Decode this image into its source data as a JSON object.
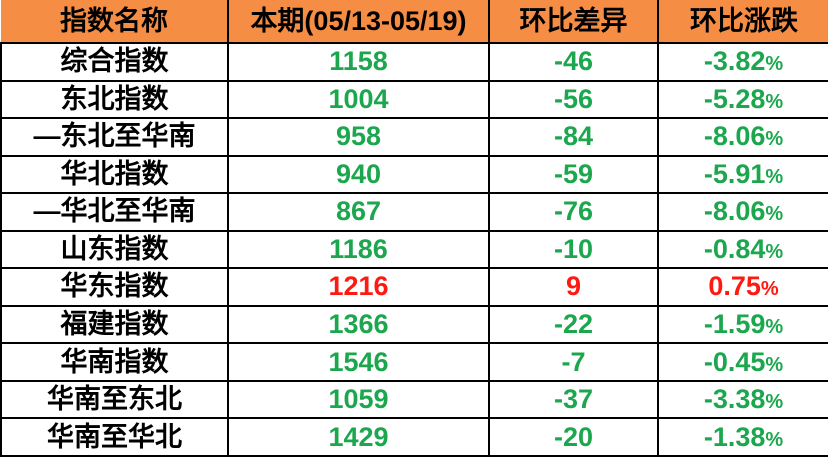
{
  "colors": {
    "header_bg": "#F68D44",
    "up": "#FE1911",
    "down": "#1CA74E",
    "border": "#000000",
    "header_text": "#000000"
  },
  "table": {
    "columns": [
      "指数名称",
      "本期(05/13-05/19)",
      "环比差异",
      "环比涨跌"
    ],
    "rows": [
      {
        "name": "综合指数",
        "value": "1158",
        "diff": "-46",
        "pct": "-3.82%",
        "trend": "down"
      },
      {
        "name": "东北指数",
        "value": "1004",
        "diff": "-56",
        "pct": "-5.28%",
        "trend": "down"
      },
      {
        "name": "—东北至华南",
        "value": "958",
        "diff": "-84",
        "pct": "-8.06%",
        "trend": "down"
      },
      {
        "name": "华北指数",
        "value": "940",
        "diff": "-59",
        "pct": "-5.91%",
        "trend": "down"
      },
      {
        "name": "—华北至华南",
        "value": "867",
        "diff": "-76",
        "pct": "-8.06%",
        "trend": "down"
      },
      {
        "name": "山东指数",
        "value": "1186",
        "diff": "-10",
        "pct": "-0.84%",
        "trend": "down"
      },
      {
        "name": "华东指数",
        "value": "1216",
        "diff": "9",
        "pct": "0.75%",
        "trend": "up"
      },
      {
        "name": "福建指数",
        "value": "1366",
        "diff": "-22",
        "pct": "-1.59%",
        "trend": "down"
      },
      {
        "name": "华南指数",
        "value": "1546",
        "diff": "-7",
        "pct": "-0.45%",
        "trend": "down"
      },
      {
        "name": "华南至东北",
        "value": "1059",
        "diff": "-37",
        "pct": "-3.38%",
        "trend": "down"
      },
      {
        "name": "华南至华北",
        "value": "1429",
        "diff": "-20",
        "pct": "-1.38%",
        "trend": "down"
      }
    ]
  },
  "chart_data": {
    "type": "table",
    "columns": [
      "指数名称",
      "本期(05/13-05/19)",
      "环比差异",
      "环比涨跌"
    ],
    "rows": [
      [
        "综合指数",
        1158,
        -46,
        "-3.82%"
      ],
      [
        "东北指数",
        1004,
        -56,
        "-5.28%"
      ],
      [
        "—东北至华南",
        958,
        -84,
        "-8.06%"
      ],
      [
        "华北指数",
        940,
        -59,
        "-5.91%"
      ],
      [
        "—华北至华南",
        867,
        -76,
        "-8.06%"
      ],
      [
        "山东指数",
        1186,
        -10,
        "-0.84%"
      ],
      [
        "华东指数",
        1216,
        9,
        "0.75%"
      ],
      [
        "福建指数",
        1366,
        -22,
        "-1.59%"
      ],
      [
        "华南指数",
        1546,
        -7,
        "-0.45%"
      ],
      [
        "华南至东北",
        1059,
        -37,
        "-3.38%"
      ],
      [
        "华南至华北",
        1429,
        -20,
        "-1.38%"
      ]
    ],
    "color_coding": {
      "negative_change": "#1CA74E",
      "positive_change": "#FE1911"
    }
  }
}
